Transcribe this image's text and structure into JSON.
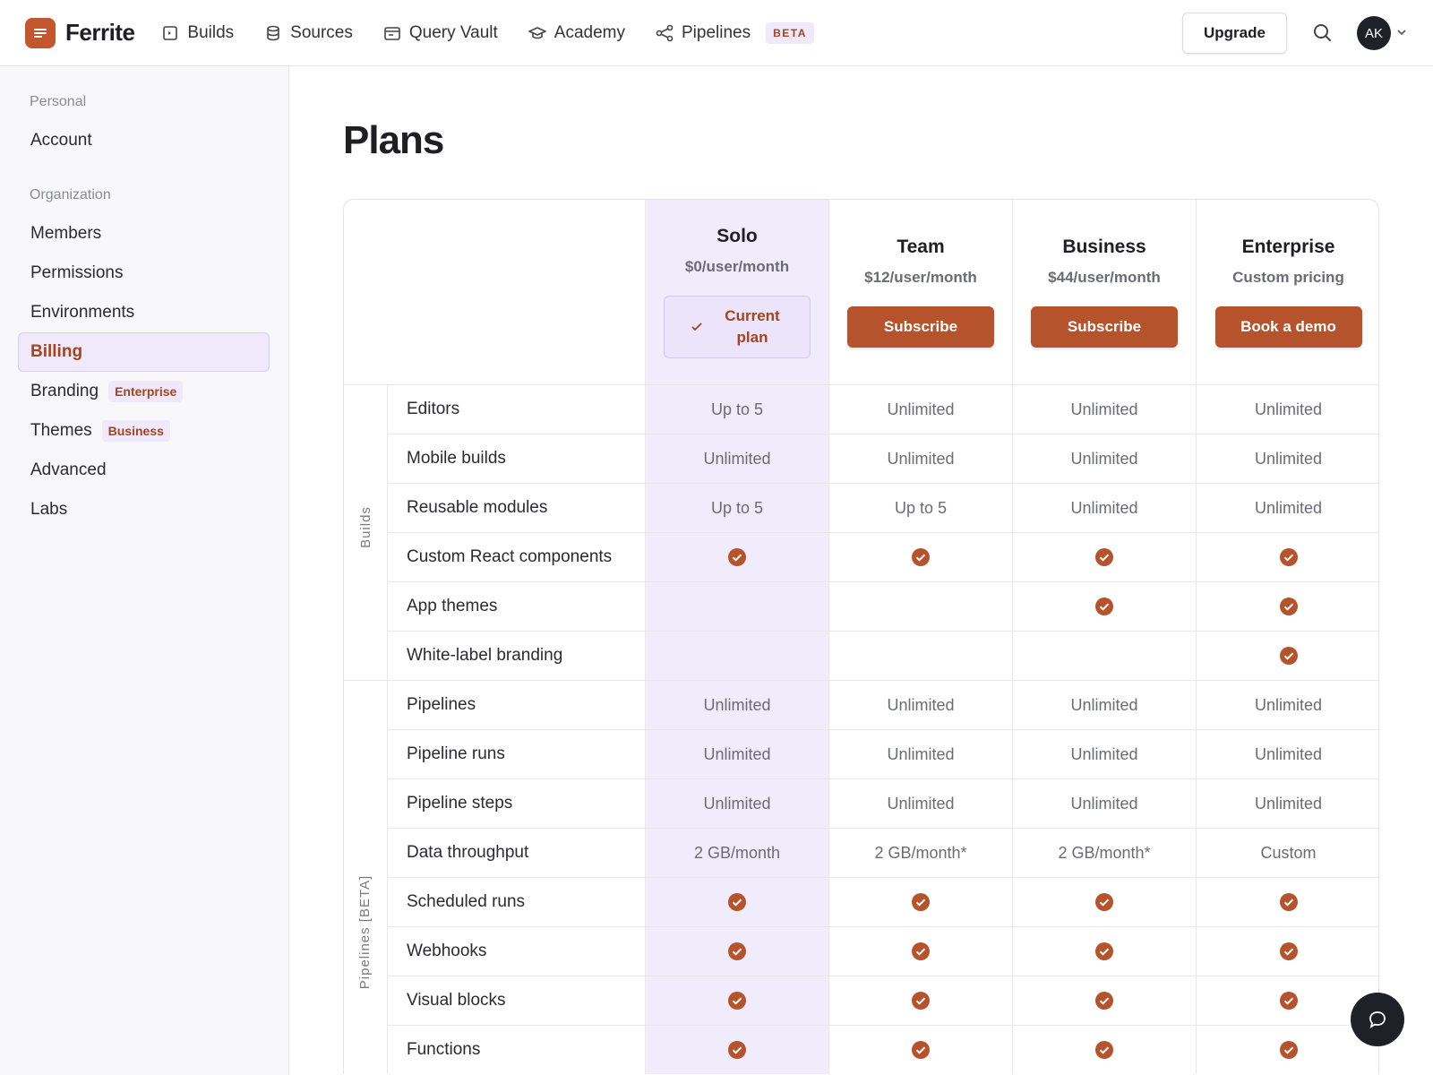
{
  "nav": {
    "brand": "Ferrite",
    "links": [
      {
        "label": "Builds"
      },
      {
        "label": "Sources"
      },
      {
        "label": "Query Vault"
      },
      {
        "label": "Academy"
      },
      {
        "label": "Pipelines",
        "badge": "BETA"
      }
    ],
    "upgrade": "Upgrade",
    "avatar": "AK"
  },
  "sidebar": {
    "groups": [
      {
        "label": "Personal",
        "items": [
          {
            "label": "Account"
          }
        ]
      },
      {
        "label": "Organization",
        "items": [
          {
            "label": "Members"
          },
          {
            "label": "Permissions"
          },
          {
            "label": "Environments"
          },
          {
            "label": "Billing",
            "active": true
          },
          {
            "label": "Branding",
            "badge": "Enterprise"
          },
          {
            "label": "Themes",
            "badge": "Business"
          },
          {
            "label": "Advanced"
          },
          {
            "label": "Labs"
          }
        ]
      }
    ]
  },
  "page_title": "Plans",
  "plans": [
    {
      "name": "Solo",
      "price": "$0/user/month",
      "action": "Current plan",
      "current": true
    },
    {
      "name": "Team",
      "price": "$12/user/month",
      "action": "Subscribe"
    },
    {
      "name": "Business",
      "price": "$44/user/month",
      "action": "Subscribe"
    },
    {
      "name": "Enterprise",
      "price": "Custom pricing",
      "action": "Book a demo"
    }
  ],
  "sections": [
    {
      "label": "Builds",
      "rows": [
        {
          "feature": "Editors",
          "values": [
            "Up to 5",
            "Unlimited",
            "Unlimited",
            "Unlimited"
          ]
        },
        {
          "feature": "Mobile builds",
          "values": [
            "Unlimited",
            "Unlimited",
            "Unlimited",
            "Unlimited"
          ]
        },
        {
          "feature": "Reusable modules",
          "values": [
            "Up to 5",
            "Up to 5",
            "Unlimited",
            "Unlimited"
          ]
        },
        {
          "feature": "Custom React components",
          "values": [
            true,
            true,
            true,
            true
          ]
        },
        {
          "feature": "App themes",
          "values": [
            false,
            false,
            true,
            true
          ]
        },
        {
          "feature": "White-label branding",
          "values": [
            false,
            false,
            false,
            true
          ]
        }
      ]
    },
    {
      "label": "Pipelines [BETA]",
      "rows": [
        {
          "feature": "Pipelines",
          "values": [
            "Unlimited",
            "Unlimited",
            "Unlimited",
            "Unlimited"
          ]
        },
        {
          "feature": "Pipeline runs",
          "values": [
            "Unlimited",
            "Unlimited",
            "Unlimited",
            "Unlimited"
          ]
        },
        {
          "feature": "Pipeline steps",
          "values": [
            "Unlimited",
            "Unlimited",
            "Unlimited",
            "Unlimited"
          ]
        },
        {
          "feature": "Data throughput",
          "values": [
            "2 GB/month",
            "2 GB/month*",
            "2 GB/month*",
            "Custom"
          ]
        },
        {
          "feature": "Scheduled runs",
          "values": [
            true,
            true,
            true,
            true
          ]
        },
        {
          "feature": "Webhooks",
          "values": [
            true,
            true,
            true,
            true
          ]
        },
        {
          "feature": "Visual blocks",
          "values": [
            true,
            true,
            true,
            true
          ]
        },
        {
          "feature": "Functions",
          "values": [
            true,
            true,
            true,
            true
          ]
        }
      ]
    }
  ]
}
